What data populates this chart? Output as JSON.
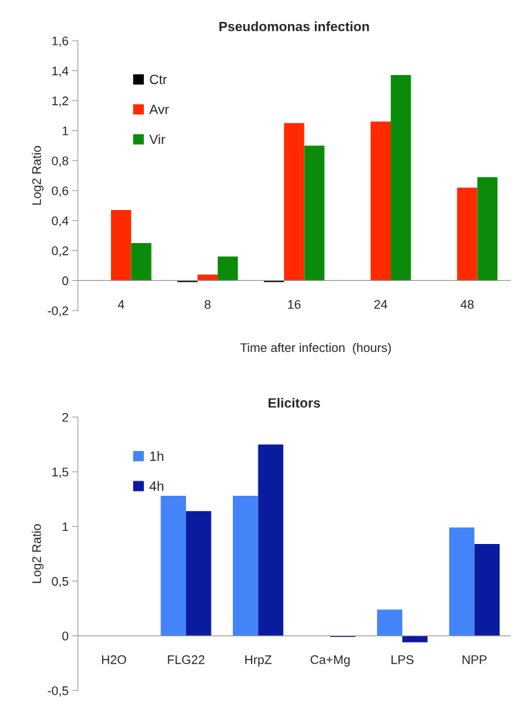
{
  "chart_data": [
    {
      "type": "bar",
      "title": "Pseudomonas infection",
      "xlabel": "Time after infection  (hours)",
      "ylabel": "Log2 Ratio",
      "categories": [
        "4",
        "8",
        "16",
        "24",
        "48"
      ],
      "series": [
        {
          "name": "Ctr",
          "color": "#000000",
          "values": [
            0,
            -0.01,
            -0.01,
            0,
            0
          ]
        },
        {
          "name": "Avr",
          "color": "#ff2a00",
          "values": [
            0.47,
            0.04,
            1.05,
            1.06,
            0.62
          ]
        },
        {
          "name": "Vir",
          "color": "#0a8c0a",
          "values": [
            0.25,
            0.16,
            0.9,
            1.37,
            0.69
          ]
        }
      ],
      "ylim": [
        -0.2,
        1.6
      ],
      "yticks": [
        {
          "value": -0.2,
          "label": "-0,2"
        },
        0,
        {
          "value": 0.2,
          "label": "0,2"
        },
        {
          "value": 0.4,
          "label": "0,4"
        },
        {
          "value": 0.6,
          "label": "0,6"
        },
        {
          "value": 0.8,
          "label": "0,8"
        },
        1,
        {
          "value": 1.2,
          "label": "1,2"
        },
        {
          "value": 1.4,
          "label": "1,4"
        },
        {
          "value": 1.6,
          "label": "1,6"
        }
      ],
      "legend": "top left",
      "grid": false
    },
    {
      "type": "bar",
      "title": "Elicitors",
      "ylabel": "Log2 Ratio",
      "categories": [
        "H2O",
        "FLG22",
        "HrpZ",
        "Ca+Mg",
        "LPS",
        "NPP"
      ],
      "series": [
        {
          "name": "1h",
          "color": "#4384f8",
          "values": [
            0,
            1.28,
            1.28,
            0,
            0.24,
            0.99
          ]
        },
        {
          "name": "4h",
          "color": "#0a1ba0",
          "values": [
            0,
            1.14,
            1.75,
            -0.01,
            -0.06,
            0.84
          ]
        }
      ],
      "ylim": [
        -0.5,
        2
      ],
      "yticks": [
        {
          "value": -0.5,
          "label": "-0,5"
        },
        0,
        {
          "value": 0.5,
          "label": "0,5"
        },
        1,
        {
          "value": 1.5,
          "label": "1,5"
        },
        2
      ],
      "legend": "top left",
      "grid": false
    }
  ]
}
